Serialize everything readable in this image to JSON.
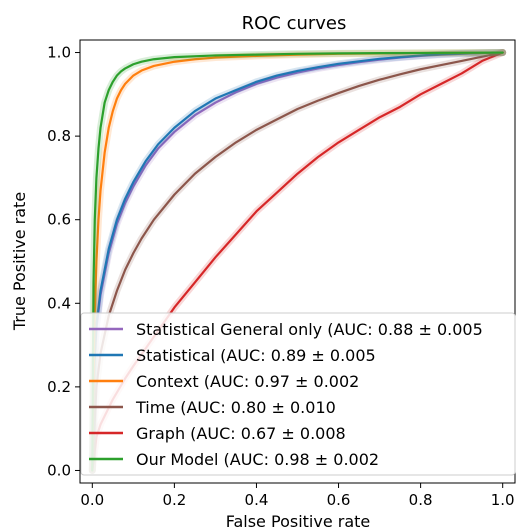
{
  "chart_data": {
    "type": "line",
    "title": "ROC curves",
    "xlabel": "False Positive rate",
    "ylabel": "True Positive rate",
    "xlim": [
      -0.03,
      1.03
    ],
    "ylim": [
      -0.03,
      1.03
    ],
    "x_ticks": [
      "0.0",
      "0.2",
      "0.4",
      "0.6",
      "0.8",
      "1.0"
    ],
    "y_ticks": [
      "0.0",
      "0.2",
      "0.4",
      "0.6",
      "0.8",
      "1.0"
    ],
    "grid": false,
    "legend_position": "lower-right",
    "series": [
      {
        "name": "Statistical General only (AUC: 0.88 ± 0.005",
        "color": "#9467bd",
        "x": [
          0.0,
          0.005,
          0.01,
          0.02,
          0.04,
          0.06,
          0.08,
          0.1,
          0.13,
          0.16,
          0.2,
          0.25,
          0.3,
          0.35,
          0.4,
          0.45,
          0.5,
          0.55,
          0.6,
          0.65,
          0.7,
          0.75,
          0.8,
          0.85,
          0.9,
          0.95,
          1.0
        ],
        "y": [
          0.0,
          0.25,
          0.34,
          0.42,
          0.52,
          0.59,
          0.64,
          0.68,
          0.73,
          0.77,
          0.81,
          0.85,
          0.88,
          0.905,
          0.925,
          0.94,
          0.952,
          0.962,
          0.97,
          0.977,
          0.983,
          0.988,
          0.992,
          0.995,
          0.997,
          0.999,
          1.0
        ]
      },
      {
        "name": "Statistical (AUC: 0.89 ± 0.005",
        "color": "#1f77b4",
        "x": [
          0.0,
          0.005,
          0.01,
          0.02,
          0.04,
          0.06,
          0.08,
          0.1,
          0.13,
          0.16,
          0.2,
          0.25,
          0.3,
          0.35,
          0.4,
          0.45,
          0.5,
          0.55,
          0.6,
          0.65,
          0.7,
          0.75,
          0.8,
          0.85,
          0.9,
          0.95,
          1.0
        ],
        "y": [
          0.0,
          0.26,
          0.35,
          0.43,
          0.53,
          0.6,
          0.65,
          0.69,
          0.74,
          0.78,
          0.82,
          0.86,
          0.89,
          0.91,
          0.93,
          0.945,
          0.956,
          0.965,
          0.973,
          0.979,
          0.985,
          0.989,
          0.993,
          0.996,
          0.998,
          0.999,
          1.0
        ]
      },
      {
        "name": "Context  (AUC: 0.97 ± 0.002",
        "color": "#ff7f0e",
        "x": [
          0.0,
          0.005,
          0.01,
          0.015,
          0.02,
          0.03,
          0.04,
          0.05,
          0.06,
          0.07,
          0.08,
          0.1,
          0.12,
          0.15,
          0.2,
          0.25,
          0.3,
          0.4,
          0.5,
          0.6,
          0.8,
          1.0
        ],
        "y": [
          0.0,
          0.35,
          0.5,
          0.6,
          0.67,
          0.76,
          0.82,
          0.86,
          0.89,
          0.91,
          0.925,
          0.945,
          0.957,
          0.968,
          0.978,
          0.984,
          0.988,
          0.992,
          0.995,
          0.997,
          0.999,
          1.0
        ]
      },
      {
        "name": "Time (AUC: 0.80 ± 0.010",
        "color": "#8c564b",
        "x": [
          0.0,
          0.01,
          0.02,
          0.04,
          0.06,
          0.08,
          0.1,
          0.12,
          0.15,
          0.2,
          0.25,
          0.3,
          0.35,
          0.4,
          0.45,
          0.5,
          0.55,
          0.6,
          0.65,
          0.7,
          0.75,
          0.8,
          0.85,
          0.9,
          0.95,
          1.0
        ],
        "y": [
          0.0,
          0.2,
          0.28,
          0.37,
          0.43,
          0.48,
          0.52,
          0.555,
          0.6,
          0.66,
          0.71,
          0.75,
          0.785,
          0.815,
          0.84,
          0.865,
          0.885,
          0.903,
          0.92,
          0.935,
          0.948,
          0.96,
          0.97,
          0.98,
          0.99,
          1.0
        ]
      },
      {
        "name": "Graph (AUC: 0.67 ± 0.008",
        "color": "#d62728",
        "x": [
          0.0,
          0.01,
          0.02,
          0.03,
          0.05,
          0.08,
          0.1,
          0.15,
          0.2,
          0.25,
          0.3,
          0.35,
          0.4,
          0.45,
          0.5,
          0.55,
          0.6,
          0.65,
          0.7,
          0.75,
          0.8,
          0.85,
          0.9,
          0.95,
          1.0
        ],
        "y": [
          0.0,
          0.08,
          0.11,
          0.13,
          0.17,
          0.22,
          0.25,
          0.32,
          0.39,
          0.45,
          0.51,
          0.565,
          0.62,
          0.665,
          0.71,
          0.75,
          0.785,
          0.815,
          0.845,
          0.87,
          0.9,
          0.925,
          0.95,
          0.98,
          1.0
        ]
      },
      {
        "name": "Our Model (AUC: 0.98 ± 0.002",
        "color": "#2ca02c",
        "x": [
          0.0,
          0.003,
          0.006,
          0.01,
          0.015,
          0.02,
          0.03,
          0.04,
          0.05,
          0.06,
          0.07,
          0.08,
          0.1,
          0.12,
          0.15,
          0.2,
          0.3,
          0.4,
          0.5,
          0.6,
          0.8,
          1.0
        ],
        "y": [
          0.0,
          0.45,
          0.6,
          0.7,
          0.77,
          0.82,
          0.88,
          0.91,
          0.93,
          0.945,
          0.955,
          0.962,
          0.972,
          0.978,
          0.984,
          0.989,
          0.993,
          0.995,
          0.997,
          0.998,
          0.999,
          1.0
        ]
      }
    ]
  }
}
